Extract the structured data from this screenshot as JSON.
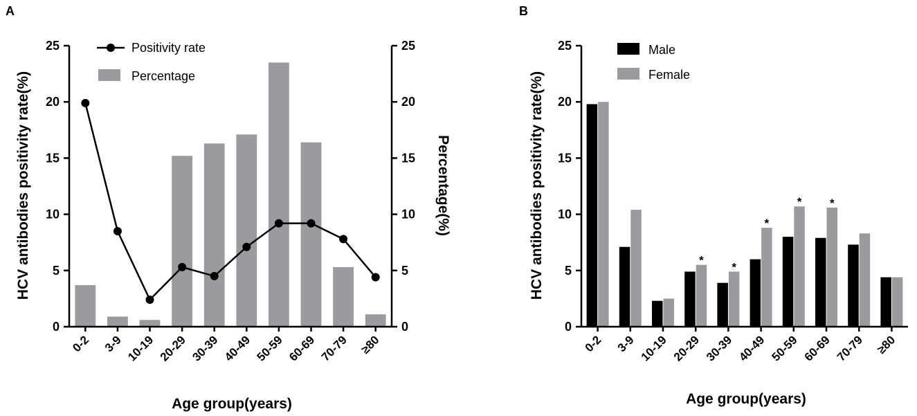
{
  "chart_data": [
    {
      "panel_label": "A",
      "type": "bar+line",
      "categories": [
        "0-2",
        "3-9",
        "10-19",
        "20-29",
        "30-39",
        "40-49",
        "50-59",
        "60-69",
        "70-79",
        "≥80"
      ],
      "series": [
        {
          "name": "Percentage",
          "type": "bar",
          "axis": "right",
          "color": "#9b9b9f",
          "values": [
            3.7,
            0.9,
            0.6,
            15.2,
            16.3,
            17.1,
            23.5,
            16.4,
            5.3,
            1.1
          ]
        },
        {
          "name": "Positivity rate",
          "type": "line",
          "axis": "left",
          "color": "#000000",
          "values": [
            19.9,
            8.5,
            2.4,
            5.3,
            4.5,
            7.1,
            9.2,
            9.2,
            7.8,
            4.4
          ]
        }
      ],
      "ylabel": "HCV antibodies positivity rate(%)",
      "y2label": "Percentage(%)",
      "xlabel": "Age group(years)",
      "ylim": [
        0,
        25
      ],
      "y2lim": [
        0,
        25
      ],
      "yticks": [
        "0",
        "5",
        "10",
        "15",
        "20",
        "25"
      ],
      "y2ticks": [
        "0",
        "5",
        "10",
        "15",
        "20",
        "25"
      ],
      "legend": [
        "Positivity rate",
        "Percentage"
      ]
    },
    {
      "panel_label": "B",
      "type": "bar",
      "categories": [
        "0-2",
        "3-9",
        "10-19",
        "20-29",
        "30-39",
        "40-49",
        "50-59",
        "60-69",
        "70-79",
        "≥80"
      ],
      "series": [
        {
          "name": "Male",
          "color": "#000000",
          "values": [
            19.8,
            7.1,
            2.3,
            4.9,
            3.9,
            6.0,
            8.0,
            7.9,
            7.3,
            4.4
          ]
        },
        {
          "name": "Female",
          "color": "#9b9b9f",
          "values": [
            20.0,
            10.4,
            2.5,
            5.5,
            4.9,
            8.8,
            10.7,
            10.6,
            8.3,
            4.4
          ]
        }
      ],
      "significance": [
        "",
        "",
        "",
        "*",
        "*",
        "*",
        "*",
        "*",
        "",
        ""
      ],
      "ylabel": "HCV antibodies positivity rate(%)",
      "xlabel": "Age group(years)",
      "ylim": [
        0,
        25
      ],
      "yticks": [
        "0",
        "5",
        "10",
        "15",
        "20",
        "25"
      ],
      "legend": [
        "Male",
        "Female"
      ]
    }
  ]
}
